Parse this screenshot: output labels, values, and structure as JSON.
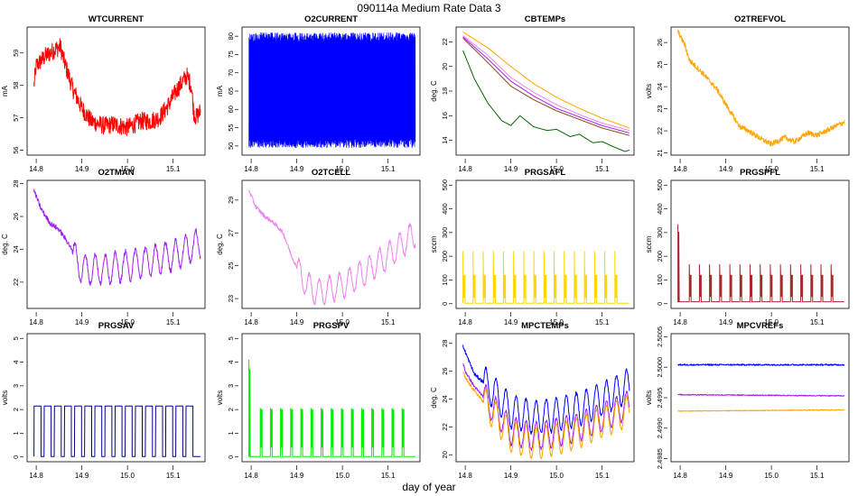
{
  "figure": {
    "title": "090114a   Medium Rate Data 3",
    "xlabel": "day of year"
  },
  "chart_data": [
    {
      "type": "line",
      "title": "WTCURRENT",
      "ylabel": "mA",
      "xlim": [
        14.78,
        15.17
      ],
      "ylim": [
        55.85,
        59.8
      ],
      "xticks": [
        "14.8",
        "14.9",
        "15.0",
        "15.1"
      ],
      "yticks": [
        "56",
        "57",
        "58",
        "59"
      ],
      "series": [
        {
          "color": "#ff0000",
          "noise": 0.28,
          "x": [
            14.795,
            14.8,
            14.82,
            14.84,
            14.853,
            14.86,
            14.88,
            14.9,
            14.92,
            14.95,
            14.97,
            15.0,
            15.03,
            15.05,
            15.07,
            15.09,
            15.11,
            15.13,
            15.14,
            15.145,
            15.15,
            15.16
          ],
          "y": [
            58.0,
            58.6,
            58.9,
            59.1,
            59.2,
            58.8,
            57.9,
            57.3,
            56.9,
            56.75,
            56.8,
            56.7,
            56.9,
            56.9,
            57.0,
            57.4,
            57.9,
            58.3,
            58.0,
            57.2,
            57.0,
            57.2
          ]
        }
      ]
    },
    {
      "type": "line",
      "title": "O2CURRENT",
      "ylabel": "mA",
      "xlim": [
        14.78,
        15.17
      ],
      "ylim": [
        47.5,
        82.5
      ],
      "xticks": [
        "14.8",
        "14.9",
        "15.0",
        "15.1"
      ],
      "yticks": [
        "50",
        "55",
        "60",
        "65",
        "70",
        "75",
        "80"
      ],
      "series": [
        {
          "color": "#0000ff",
          "band": [
            49.5,
            81
          ]
        }
      ]
    },
    {
      "type": "line",
      "title": "CBTEMPs",
      "ylabel": "deg. C",
      "xlim": [
        14.78,
        15.17
      ],
      "ylim": [
        12.8,
        23.2
      ],
      "xticks": [
        "14.8",
        "14.9",
        "15.0",
        "15.1"
      ],
      "yticks": [
        "14",
        "16",
        "18",
        "20",
        "22"
      ],
      "series": [
        {
          "color": "#ffa500",
          "x": [
            14.795,
            14.85,
            14.9,
            14.95,
            15.0,
            15.05,
            15.1,
            15.16
          ],
          "y": [
            22.8,
            21.5,
            20.0,
            18.6,
            17.5,
            16.6,
            15.8,
            15.0
          ]
        },
        {
          "color": "#ee82ee",
          "x": [
            14.795,
            14.85,
            14.9,
            14.95,
            15.0,
            15.05,
            15.1,
            15.16
          ],
          "y": [
            22.5,
            20.9,
            19.1,
            17.9,
            16.9,
            16.1,
            15.4,
            14.8
          ]
        },
        {
          "color": "#a020f0",
          "x": [
            14.795,
            14.85,
            14.9,
            14.95,
            15.0,
            15.05,
            15.1,
            15.16
          ],
          "y": [
            22.4,
            20.6,
            18.8,
            17.6,
            16.6,
            15.9,
            15.2,
            14.6
          ]
        },
        {
          "color": "#8b4513",
          "x": [
            14.795,
            14.85,
            14.9,
            14.95,
            15.0,
            15.05,
            15.1,
            15.16
          ],
          "y": [
            22.3,
            20.3,
            18.4,
            17.3,
            16.4,
            15.7,
            15.0,
            14.4
          ]
        },
        {
          "color": "#006400",
          "x": [
            14.795,
            14.82,
            14.85,
            14.88,
            14.9,
            14.92,
            14.95,
            14.98,
            15.0,
            15.03,
            15.05,
            15.08,
            15.1,
            15.13,
            15.15,
            15.16
          ],
          "y": [
            21.3,
            19.0,
            17.0,
            15.6,
            15.2,
            16.0,
            15.1,
            14.8,
            14.9,
            14.3,
            14.5,
            13.8,
            13.9,
            13.4,
            13.1,
            13.2
          ]
        }
      ]
    },
    {
      "type": "line",
      "title": "O2TREFVOL",
      "ylabel": "volts",
      "xlim": [
        14.78,
        15.17
      ],
      "ylim": [
        20.9,
        26.7
      ],
      "xticks": [
        "14.8",
        "14.9",
        "15.0",
        "15.1"
      ],
      "yticks": [
        "21",
        "22",
        "23",
        "24",
        "25",
        "26"
      ],
      "series": [
        {
          "color": "#ffa500",
          "noise": 0.12,
          "x": [
            14.795,
            14.81,
            14.82,
            14.85,
            14.88,
            14.9,
            14.93,
            14.95,
            14.98,
            15.0,
            15.03,
            15.05,
            15.08,
            15.1,
            15.13,
            15.16
          ],
          "y": [
            26.5,
            25.9,
            25.2,
            24.6,
            23.9,
            23.2,
            22.2,
            22.0,
            21.6,
            21.4,
            21.7,
            21.5,
            21.9,
            21.8,
            22.1,
            22.4
          ]
        }
      ]
    },
    {
      "type": "line",
      "title": "O2TMAN",
      "ylabel": "deg. C",
      "xlim": [
        14.78,
        15.17
      ],
      "ylim": [
        20.4,
        28.2
      ],
      "xticks": [
        "14.8",
        "14.9",
        "15.0",
        "15.1"
      ],
      "yticks": [
        "22",
        "24",
        "26",
        "28"
      ],
      "series": [
        {
          "color": "#a020f0",
          "noise": 0.15,
          "osc": {
            "start": 14.88,
            "period": 0.022,
            "amp": 0.9
          },
          "x": [
            14.795,
            14.81,
            14.83,
            14.85,
            14.87,
            14.89,
            14.9,
            14.95,
            15.0,
            15.05,
            15.1,
            15.16
          ],
          "y": [
            27.6,
            26.5,
            25.6,
            25.2,
            24.4,
            23.2,
            22.8,
            22.8,
            23.0,
            23.3,
            23.6,
            24.4
          ]
        }
      ]
    },
    {
      "type": "line",
      "title": "O2TCELL",
      "ylabel": "deg. C",
      "xlim": [
        14.78,
        15.17
      ],
      "ylim": [
        22.4,
        30.2
      ],
      "xticks": [
        "14.8",
        "14.9",
        "15.0",
        "15.1"
      ],
      "yticks": [
        "23",
        "25",
        "27",
        "29"
      ],
      "series": [
        {
          "color": "#ee82ee",
          "noise": 0.12,
          "osc": {
            "start": 14.9,
            "period": 0.022,
            "amp": 0.8
          },
          "x": [
            14.795,
            14.81,
            14.83,
            14.85,
            14.87,
            14.89,
            14.91,
            14.93,
            14.95,
            15.0,
            15.05,
            15.1,
            15.16
          ],
          "y": [
            29.6,
            28.6,
            28.0,
            27.6,
            27.0,
            25.5,
            24.3,
            23.6,
            23.4,
            23.8,
            24.6,
            25.6,
            27.0
          ]
        }
      ]
    },
    {
      "type": "line",
      "title": "PRGSAFL",
      "ylabel": "sccm",
      "xlim": [
        14.78,
        15.17
      ],
      "ylim": [
        -20,
        520
      ],
      "xticks": [
        "14.8",
        "14.9",
        "15.0",
        "15.1"
      ],
      "yticks": [
        "0",
        "100",
        "200",
        "300",
        "400",
        "500"
      ],
      "series": [
        {
          "color": "#ffd700",
          "pulse": {
            "start": 14.795,
            "period": 0.0222,
            "count": 16,
            "low": 2,
            "high": 120,
            "width": 0.0045,
            "spike": 220
          }
        }
      ]
    },
    {
      "type": "line",
      "title": "PRGSPFL",
      "ylabel": "sccm",
      "xlim": [
        14.78,
        15.17
      ],
      "ylim": [
        -20,
        520
      ],
      "xticks": [
        "14.8",
        "14.9",
        "15.0",
        "15.1"
      ],
      "yticks": [
        "0",
        "100",
        "200",
        "300",
        "400",
        "500"
      ],
      "series": [
        {
          "color": "#a52a2a",
          "pulse": {
            "start": 14.82,
            "period": 0.0222,
            "count": 15,
            "low": 8,
            "high": 120,
            "width": 0.004,
            "spike": 165
          },
          "startSpike": 335
        }
      ]
    },
    {
      "type": "line",
      "title": "PRGSAV",
      "ylabel": "volts",
      "xlim": [
        14.78,
        15.17
      ],
      "ylim": [
        -0.2,
        5.2
      ],
      "xticks": [
        "14.8",
        "14.9",
        "15.0",
        "15.1"
      ],
      "yticks": [
        "0",
        "1",
        "2",
        "3",
        "4",
        "5"
      ],
      "series": [
        {
          "color": "#00008b",
          "square": {
            "start": 14.795,
            "period": 0.0222,
            "count": 16,
            "low": 0.02,
            "high": 2.15,
            "width": 0.0155
          }
        }
      ]
    },
    {
      "type": "line",
      "title": "PRGSPV",
      "ylabel": "volts",
      "xlim": [
        14.78,
        15.17
      ],
      "ylim": [
        -0.2,
        5.2
      ],
      "xticks": [
        "14.8",
        "14.9",
        "15.0",
        "15.1"
      ],
      "yticks": [
        "0",
        "1",
        "2",
        "3",
        "4",
        "5"
      ],
      "series": [
        {
          "color": "#00ee00",
          "pulse": {
            "start": 14.82,
            "period": 0.0222,
            "count": 15,
            "low": 0.02,
            "high": 2.0,
            "width": 0.004,
            "spike": 2.05
          },
          "startSpike": 4.1
        }
      ]
    },
    {
      "type": "line",
      "title": "MPCTEMPs",
      "ylabel": "deg. C",
      "xlim": [
        14.78,
        15.17
      ],
      "ylim": [
        19.5,
        28.7
      ],
      "xticks": [
        "14.8",
        "14.9",
        "15.0",
        "15.1"
      ],
      "yticks": [
        "20",
        "22",
        "24",
        "26",
        "28"
      ],
      "series": [
        {
          "color": "#0000ff",
          "noise": 0.12,
          "osc": {
            "start": 14.84,
            "period": 0.022,
            "amp": 1.2
          },
          "x": [
            14.795,
            14.8,
            14.82,
            14.85,
            14.88,
            14.9,
            14.95,
            15.0,
            15.05,
            15.1,
            15.16
          ],
          "y": [
            27.8,
            27.4,
            25.8,
            24.9,
            23.9,
            23.1,
            22.7,
            22.9,
            23.3,
            24.0,
            25.0
          ]
        },
        {
          "color": "#a020f0",
          "noise": 0.1,
          "osc": {
            "start": 14.84,
            "period": 0.022,
            "amp": 1.0
          },
          "x": [
            14.795,
            14.8,
            14.82,
            14.85,
            14.88,
            14.9,
            14.95,
            15.0,
            15.05,
            15.1,
            15.16
          ],
          "y": [
            26.6,
            26.0,
            24.9,
            23.8,
            22.6,
            21.7,
            21.3,
            21.6,
            22.0,
            22.7,
            23.6
          ]
        },
        {
          "color": "#ffa500",
          "noise": 0.1,
          "osc": {
            "start": 14.84,
            "period": 0.022,
            "amp": 1.1
          },
          "x": [
            14.795,
            14.8,
            14.82,
            14.85,
            14.88,
            14.9,
            14.95,
            15.0,
            15.05,
            15.1,
            15.16
          ],
          "y": [
            26.0,
            25.5,
            24.6,
            23.4,
            22.2,
            21.3,
            20.8,
            21.1,
            21.6,
            22.3,
            23.2
          ]
        }
      ]
    },
    {
      "type": "line",
      "title": "MPCVREFs",
      "ylabel": "volts",
      "xlim": [
        14.78,
        15.17
      ],
      "ylim": [
        2.49845,
        2.50055
      ],
      "xticks": [
        "14.8",
        "14.9",
        "15.0",
        "15.1"
      ],
      "yticks": [
        "2.4985",
        "2.4990",
        "2.4995",
        "2.5000",
        "2.5005"
      ],
      "series": [
        {
          "color": "#0000ff",
          "noise": 1.2e-05,
          "x": [
            14.795,
            15.16
          ],
          "y": [
            2.50004,
            2.50004
          ]
        },
        {
          "color": "#a020f0",
          "noise": 8e-06,
          "x": [
            14.795,
            15.16
          ],
          "y": [
            2.49955,
            2.49953
          ]
        },
        {
          "color": "#ffa500",
          "noise": 6e-06,
          "x": [
            14.795,
            15.16
          ],
          "y": [
            2.49928,
            2.4993
          ]
        }
      ]
    }
  ]
}
